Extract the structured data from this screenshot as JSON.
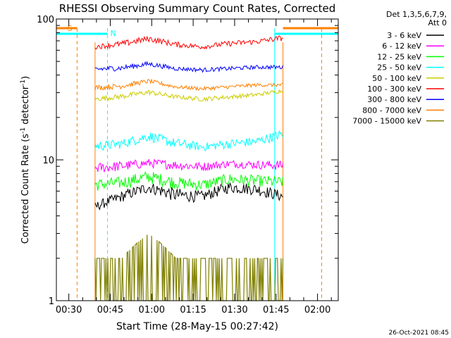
{
  "chart_data": {
    "type": "line",
    "title": "RHESSI Observing Summary Count Rates, Corrected",
    "xlabel": "Start Time (28-May-15 00:27:42)",
    "ylabel": "Corrected Count Rate (s⁻¹ detector⁻¹)",
    "ylabel_parts": {
      "base": "Corrected Count Rate (s",
      "exp1": "-1",
      "mid": " detector",
      "exp2": "-1",
      "end": ")"
    },
    "yscale": "log",
    "ylim": [
      1,
      100
    ],
    "xlim_min": [
      25.5,
      127.5
    ],
    "y_ticks": [
      {
        "v": 1,
        "label": "1"
      },
      {
        "v": 10,
        "label": "10"
      },
      {
        "v": 100,
        "label": "100"
      }
    ],
    "x_ticks": [
      {
        "min": 30,
        "label": "00:30"
      },
      {
        "min": 45,
        "label": "00:45"
      },
      {
        "min": 60,
        "label": "01:00"
      },
      {
        "min": 75,
        "label": "01:15"
      },
      {
        "min": 90,
        "label": "01:30"
      },
      {
        "min": 105,
        "label": "01:45"
      },
      {
        "min": 120,
        "label": "02:00"
      }
    ],
    "legend_title": [
      "Det 1,3,5,6,7,9,",
      "Att 0"
    ],
    "legend_position": "right, outside plot",
    "series": [
      {
        "name": "3 - 6 keV",
        "color": "#000000",
        "min": [
          4.3,
          5.0,
          5.8,
          5.0,
          5.0,
          5.8,
          5.6,
          5.0
        ],
        "max": [
          5.0,
          6.0,
          7.0,
          6.3,
          6.0,
          7.0,
          6.8,
          6.0
        ]
      },
      {
        "name": "6 - 12 keV",
        "color": "#ff00ff",
        "min": [
          8.0,
          8.3,
          8.8,
          8.5,
          8.3,
          8.8,
          8.6,
          8.4
        ],
        "max": [
          9.5,
          9.8,
          10.2,
          9.9,
          9.6,
          10.0,
          9.9,
          9.9
        ]
      },
      {
        "name": "12 - 25 keV",
        "color": "#00ff00",
        "min": [
          6.0,
          6.2,
          6.8,
          6.2,
          6.0,
          6.6,
          6.4,
          6.3
        ],
        "max": [
          7.3,
          7.6,
          8.4,
          7.6,
          7.3,
          8.0,
          7.8,
          7.6
        ]
      },
      {
        "name": "25 - 50 keV",
        "color": "#00ffff",
        "min": [
          11.5,
          12.0,
          13.5,
          12.0,
          11.5,
          12.0,
          12.5,
          14.0
        ],
        "max": [
          13.5,
          14.0,
          16.0,
          14.2,
          13.2,
          14.0,
          14.5,
          16.5
        ]
      },
      {
        "name": "50 - 100 keV",
        "color": "#cccc00",
        "min": [
          26,
          27,
          29,
          27,
          26,
          27,
          28,
          30
        ],
        "max": [
          28,
          29.5,
          31.5,
          29,
          28,
          29,
          30,
          32
        ]
      },
      {
        "name": "100 - 300 keV",
        "color": "#ff0000",
        "min": [
          61,
          63,
          69,
          63,
          61,
          64,
          66,
          70
        ],
        "max": [
          66,
          70,
          76,
          69,
          66,
          70,
          72,
          77
        ]
      },
      {
        "name": "300 - 800 keV",
        "color": "#0000ff",
        "min": [
          42,
          43,
          46,
          43,
          42,
          43,
          44,
          44
        ],
        "max": [
          46,
          47,
          50,
          46,
          45,
          46,
          47,
          47
        ]
      },
      {
        "name": "800 - 7000 keV",
        "color": "#ff8000",
        "min": [
          31,
          32,
          35,
          32,
          31,
          32,
          33,
          33
        ],
        "max": [
          34,
          35,
          37.5,
          34,
          33,
          34,
          35,
          35
        ]
      },
      {
        "name": "7000 - 15000 keV",
        "color": "#808000",
        "min": [
          1.0,
          1.0,
          1.0,
          1.0,
          1.0,
          1.0,
          1.0,
          1.0
        ],
        "max": [
          2.0,
          2.0,
          3.0,
          2.0,
          2.0,
          2.0,
          2.0,
          2.0
        ]
      }
    ],
    "series_time_range_min": [
      39.5,
      107.5
    ],
    "annotations": {
      "saa_label": "S",
      "night_label": "N",
      "saa_color": "#ff8000",
      "night_color": "#00ffff"
    },
    "timestamp": "26-Oct-2021 08:45"
  }
}
